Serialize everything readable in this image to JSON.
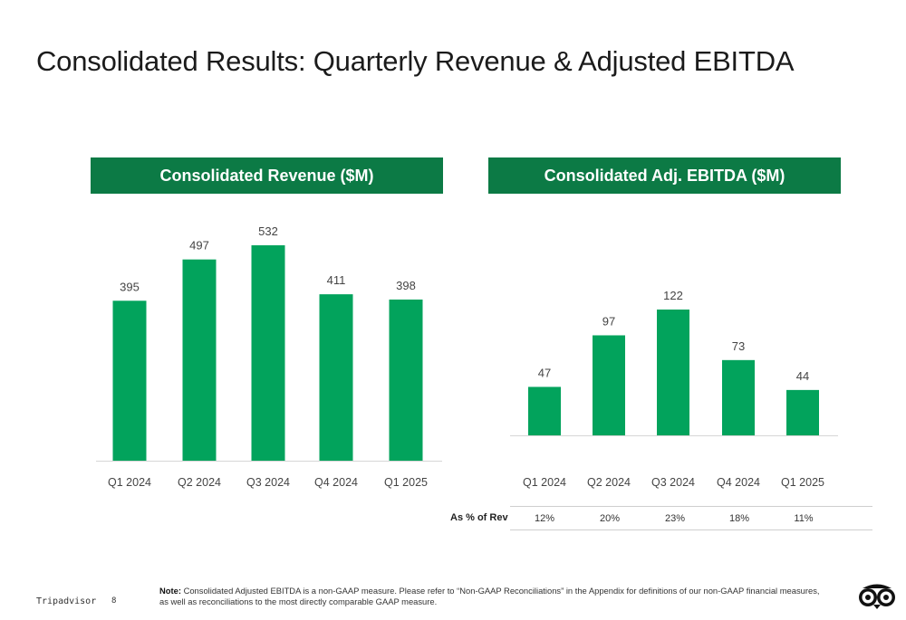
{
  "page": {
    "title": "Consolidated Results: Quarterly Revenue & Adjusted EBITDA",
    "colors": {
      "bar": "#02a35c",
      "header_bg": "#0c7a45",
      "header_text": "#ffffff",
      "text": "#1a1a1a"
    }
  },
  "revenue_header": "Consolidated Revenue ($M)",
  "ebitda_header": "Consolidated Adj. EBITDA ($M)",
  "chart_data": [
    {
      "type": "bar",
      "title": "Consolidated Revenue ($M)",
      "categories": [
        "Q1 2024",
        "Q2 2024",
        "Q3 2024",
        "Q4 2024",
        "Q1 2025"
      ],
      "values": [
        395,
        497,
        532,
        411,
        398
      ],
      "value_labels": [
        "395",
        "497",
        "532",
        "411",
        "398"
      ],
      "ylim": [
        0,
        532
      ],
      "grid": false,
      "legend": "none"
    },
    {
      "type": "bar",
      "title": "Consolidated Adj. EBITDA ($M)",
      "categories": [
        "Q1 2024",
        "Q2 2024",
        "Q3 2024",
        "Q4 2024",
        "Q1 2025"
      ],
      "values": [
        47,
        97,
        122,
        73,
        44
      ],
      "value_labels": [
        "47",
        "97",
        "122",
        "73",
        "44"
      ],
      "ylim": [
        0,
        122
      ],
      "grid": false,
      "legend": "none"
    }
  ],
  "margin_row": {
    "label": "As % of Rev",
    "values": [
      "12%",
      "20%",
      "23%",
      "18%",
      "11%"
    ]
  },
  "footer": {
    "brand": "Tripadvisor",
    "page_number": "8",
    "note_bold": "Note:",
    "note_text": " Consolidated Adjusted EBITDA is a non-GAAP measure.  Please refer to “Non-GAAP Reconciliations” in the Appendix for definitions of our non-GAAP financial measures, as well as reconciliations to the most directly comparable GAAP measure.",
    "logo_icon": "tripadvisor-owl-icon"
  }
}
